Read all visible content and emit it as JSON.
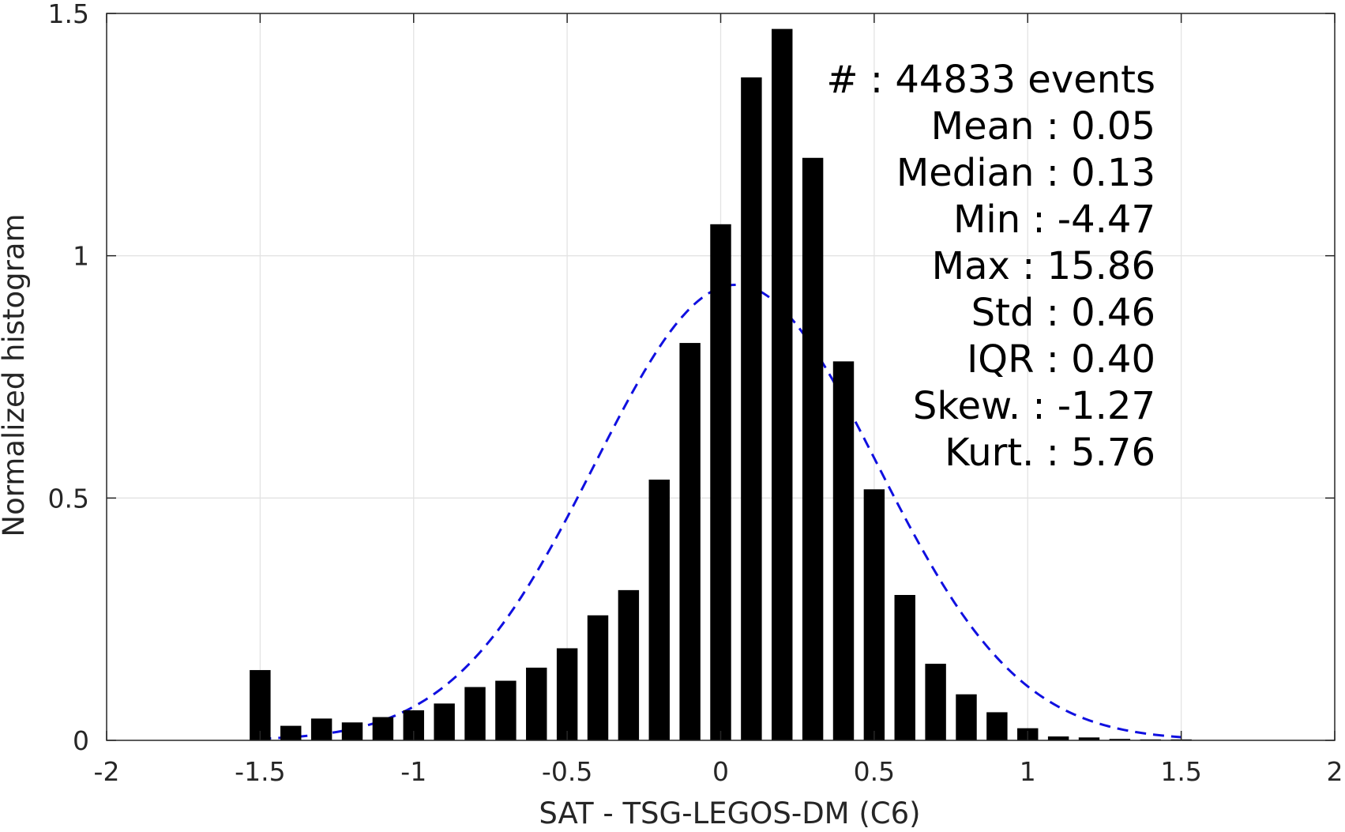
{
  "chart_data": {
    "type": "bar",
    "xlabel": "SAT - TSG-LEGOS-DM (C6)",
    "ylabel": "Normalized histogram",
    "xlim": [
      -2,
      2
    ],
    "ylim": [
      0,
      1.5
    ],
    "grid": true,
    "x_ticks": [
      -2,
      -1.5,
      -1,
      -0.5,
      0,
      0.5,
      1,
      1.5,
      2
    ],
    "x_tick_labels": [
      "-2",
      "-1.5",
      "-1",
      "-0.5",
      "0",
      "0.5",
      "1",
      "1.5",
      "2"
    ],
    "y_ticks": [
      0,
      0.5,
      1,
      1.5
    ],
    "y_tick_labels": [
      "0",
      "0.5",
      "1",
      "1.5"
    ],
    "bar_color": "#000000",
    "bins": {
      "centers": [
        -1.5,
        -1.4,
        -1.3,
        -1.2,
        -1.1,
        -1.0,
        -0.9,
        -0.8,
        -0.7,
        -0.6,
        -0.5,
        -0.4,
        -0.3,
        -0.2,
        -0.1,
        0.0,
        0.1,
        0.2,
        0.3,
        0.4,
        0.5,
        0.6,
        0.7,
        0.8,
        0.9,
        1.0,
        1.1,
        1.2,
        1.3,
        1.4,
        1.5
      ],
      "values": [
        0.145,
        0.03,
        0.045,
        0.037,
        0.048,
        0.062,
        0.076,
        0.11,
        0.123,
        0.15,
        0.19,
        0.258,
        0.31,
        0.538,
        0.82,
        1.065,
        1.368,
        1.468,
        1.202,
        0.782,
        0.518,
        0.3,
        0.158,
        0.095,
        0.058,
        0.025,
        0.008,
        0.006,
        0.003,
        0.002,
        0.002
      ],
      "width": 0.068
    },
    "normal_fit": {
      "mean": 0.05,
      "std": 0.46,
      "peak": 0.94,
      "x_range": [
        -1.5,
        1.5
      ],
      "color": "#1010e0",
      "style": "dashed"
    },
    "annotation_lines": [
      "#  : 44833 events",
      "Mean : 0.05",
      "Median : 0.13",
      "Min : -4.47",
      "Max : 15.86",
      "Std : 0.46",
      "IQR : 0.40",
      "Skew. : -1.27",
      "Kurt. : 5.76"
    ]
  }
}
